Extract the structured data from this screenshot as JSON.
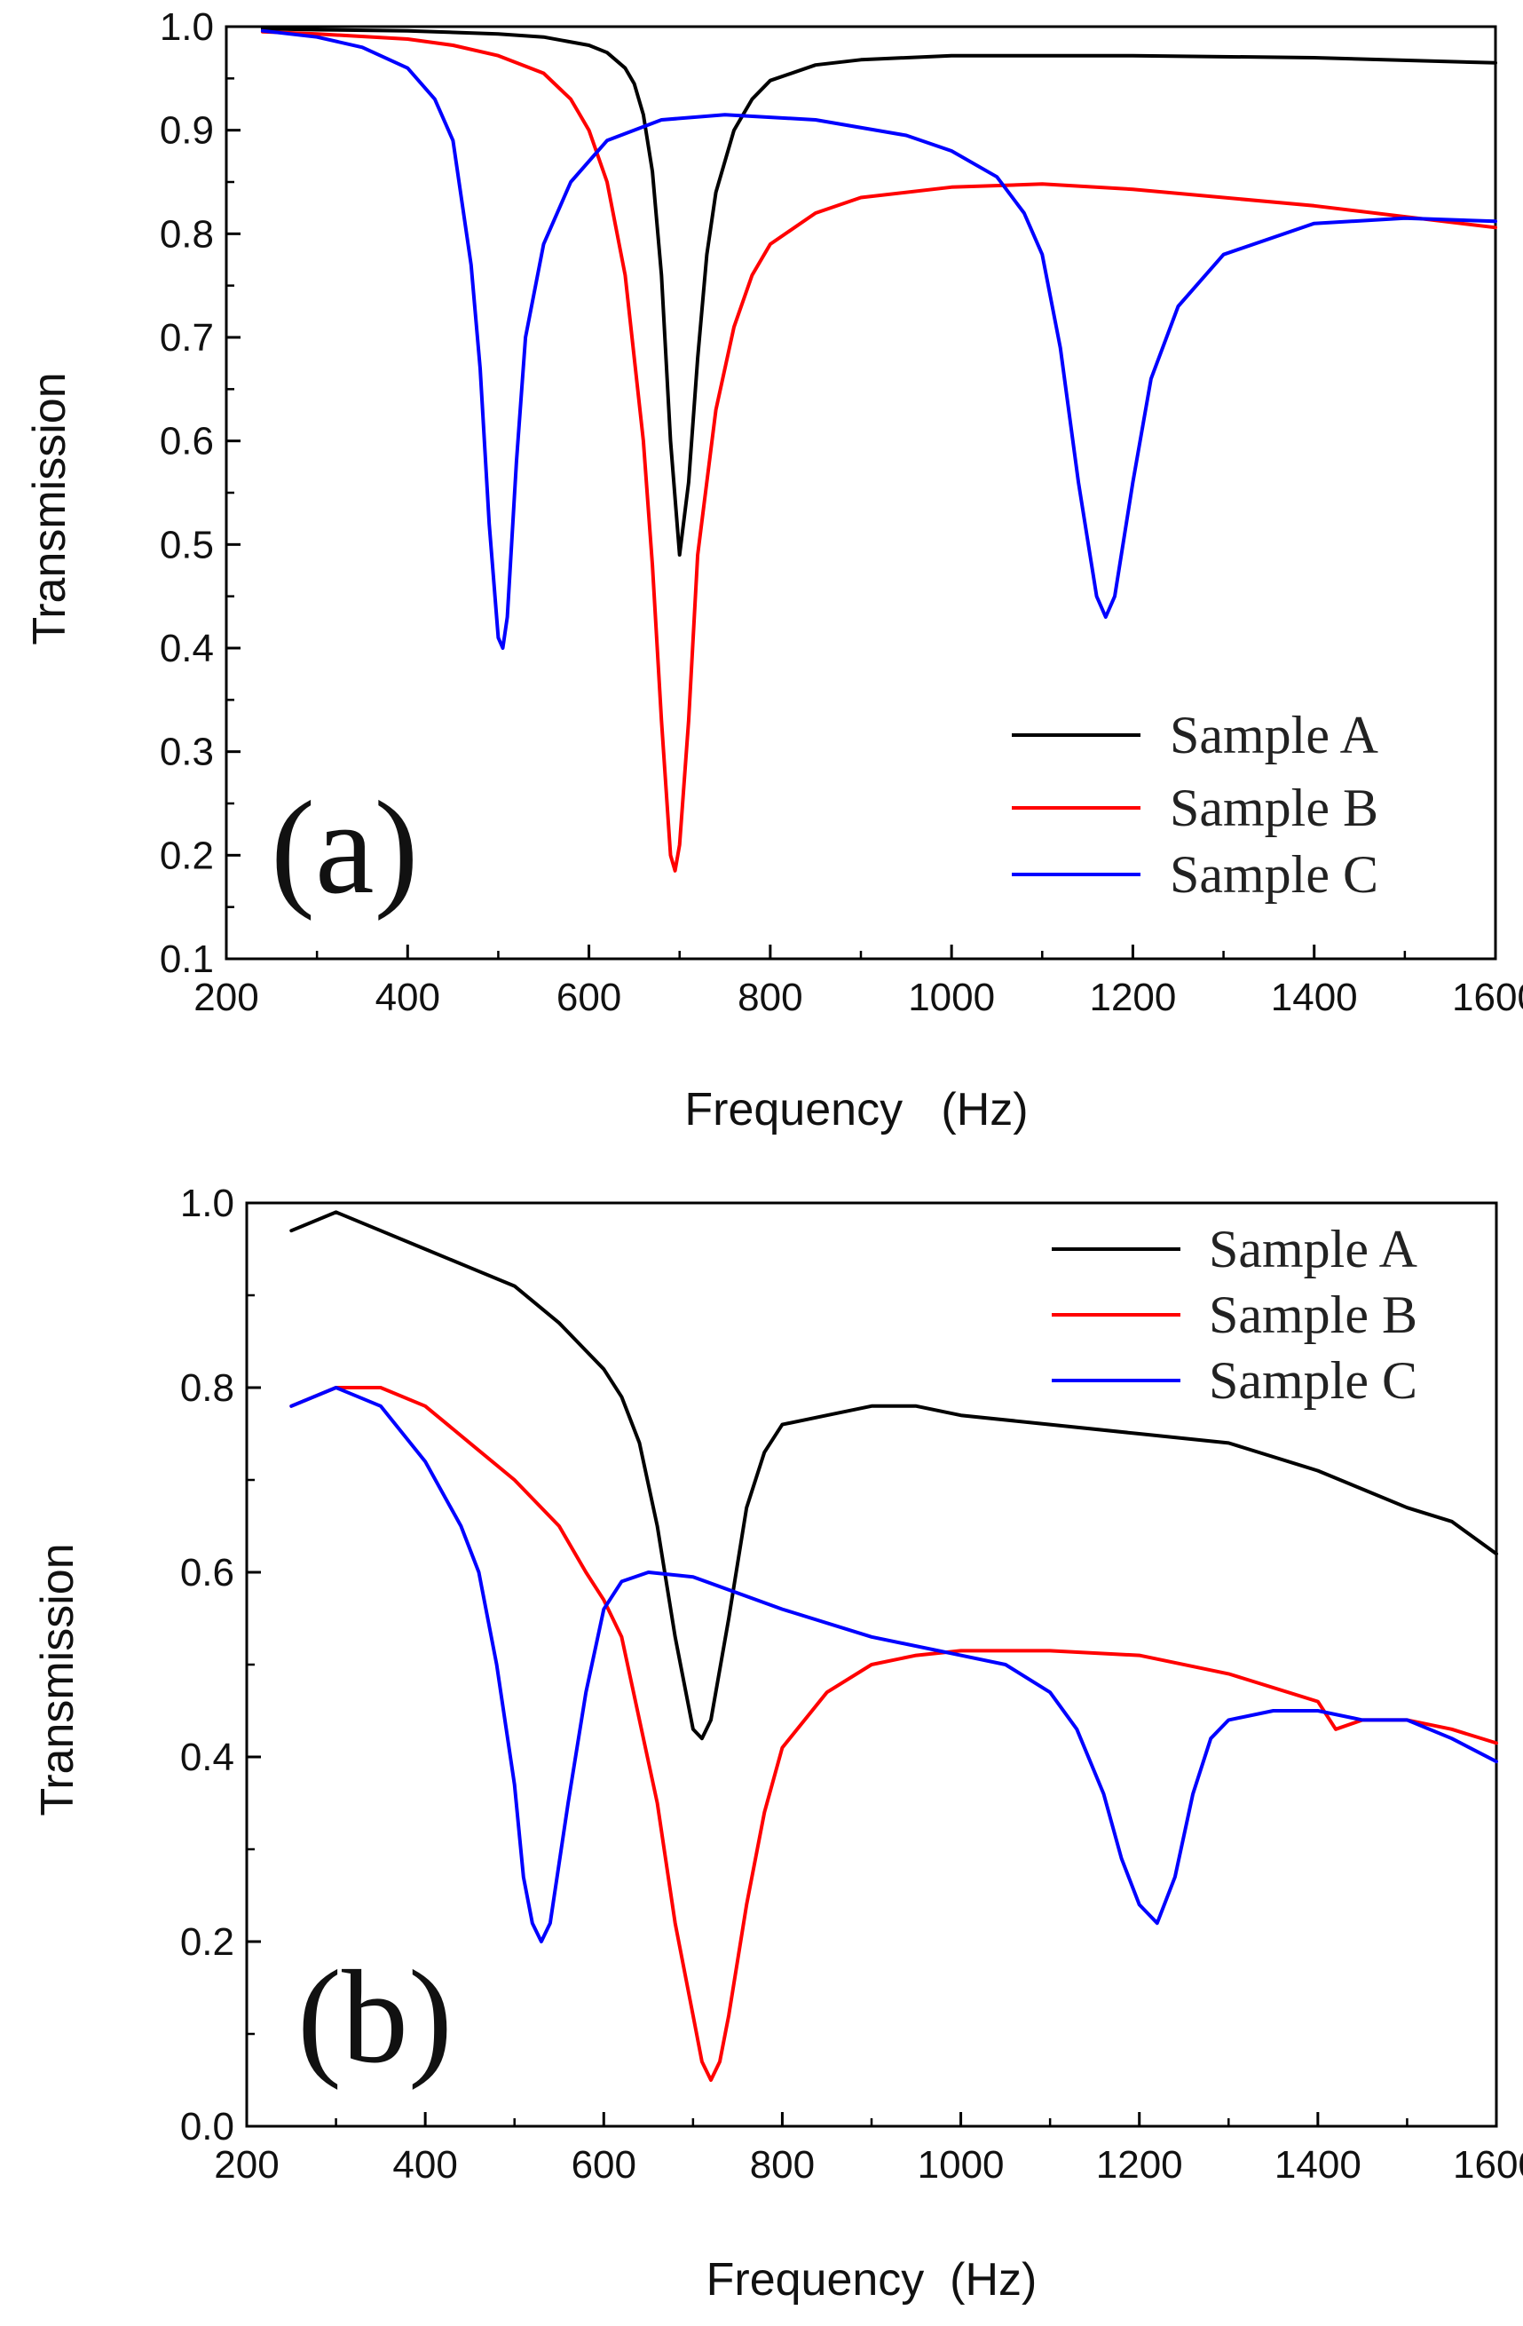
{
  "chart_data": [
    {
      "type": "line",
      "panel_label": "(a)",
      "xlabel": "Frequency   (Hz)",
      "ylabel": "Transmission",
      "xlim": [
        200,
        1600
      ],
      "ylim": [
        0.1,
        1.0
      ],
      "xticks": [
        200,
        400,
        600,
        800,
        1000,
        1200,
        1400,
        1600
      ],
      "yticks": [
        "0.1",
        "0.2",
        "0.3",
        "0.4",
        "0.5",
        "0.6",
        "0.7",
        "0.8",
        "0.9",
        "1.0"
      ],
      "legend_position": "bottom-right",
      "series": [
        {
          "name": "Sample A",
          "color": "#000000",
          "x": [
            240,
            300,
            400,
            500,
            550,
            600,
            620,
            640,
            650,
            660,
            670,
            680,
            690,
            700,
            710,
            720,
            730,
            740,
            760,
            780,
            800,
            850,
            900,
            1000,
            1200,
            1400,
            1600
          ],
          "y": [
            0.998,
            0.997,
            0.996,
            0.993,
            0.99,
            0.982,
            0.975,
            0.96,
            0.945,
            0.915,
            0.86,
            0.76,
            0.6,
            0.49,
            0.56,
            0.68,
            0.78,
            0.84,
            0.9,
            0.93,
            0.948,
            0.963,
            0.968,
            0.972,
            0.972,
            0.97,
            0.965
          ]
        },
        {
          "name": "Sample B",
          "color": "#ff0000",
          "x": [
            240,
            300,
            400,
            450,
            500,
            550,
            580,
            600,
            620,
            640,
            660,
            670,
            680,
            690,
            695,
            700,
            710,
            720,
            740,
            760,
            780,
            800,
            850,
            900,
            1000,
            1100,
            1200,
            1400,
            1600
          ],
          "y": [
            0.995,
            0.993,
            0.988,
            0.982,
            0.972,
            0.955,
            0.93,
            0.9,
            0.85,
            0.76,
            0.6,
            0.48,
            0.33,
            0.2,
            0.185,
            0.21,
            0.33,
            0.49,
            0.63,
            0.71,
            0.76,
            0.79,
            0.82,
            0.835,
            0.845,
            0.848,
            0.843,
            0.827,
            0.806
          ]
        },
        {
          "name": "Sample C",
          "color": "#0000ff",
          "x": [
            240,
            300,
            350,
            400,
            430,
            450,
            470,
            480,
            490,
            500,
            505,
            510,
            520,
            530,
            550,
            580,
            620,
            680,
            750,
            850,
            950,
            1000,
            1050,
            1080,
            1100,
            1120,
            1140,
            1160,
            1170,
            1180,
            1200,
            1220,
            1250,
            1300,
            1400,
            1500,
            1600
          ],
          "y": [
            0.996,
            0.99,
            0.98,
            0.96,
            0.93,
            0.89,
            0.77,
            0.67,
            0.52,
            0.41,
            0.4,
            0.43,
            0.58,
            0.7,
            0.79,
            0.85,
            0.89,
            0.91,
            0.915,
            0.91,
            0.895,
            0.88,
            0.855,
            0.82,
            0.78,
            0.69,
            0.56,
            0.45,
            0.43,
            0.45,
            0.56,
            0.66,
            0.73,
            0.78,
            0.81,
            0.815,
            0.812
          ]
        }
      ]
    },
    {
      "type": "line",
      "panel_label": "(b)",
      "xlabel": "Frequency  (Hz)",
      "ylabel": "Transmission",
      "xlim": [
        200,
        1600
      ],
      "ylim": [
        0.0,
        1.0
      ],
      "xticks": [
        200,
        400,
        600,
        800,
        1000,
        1200,
        1400,
        1600
      ],
      "yticks": [
        "0.0",
        "0.2",
        "0.4",
        "0.6",
        "0.8",
        "1.0"
      ],
      "legend_position": "top-right",
      "series": [
        {
          "name": "Sample A",
          "color": "#000000",
          "x": [
            250,
            300,
            350,
            400,
            450,
            500,
            550,
            600,
            620,
            640,
            660,
            680,
            700,
            710,
            720,
            740,
            760,
            780,
            800,
            850,
            900,
            950,
            1000,
            1100,
            1200,
            1300,
            1400,
            1450,
            1500,
            1550,
            1600
          ],
          "y": [
            0.97,
            0.99,
            0.97,
            0.95,
            0.93,
            0.91,
            0.87,
            0.82,
            0.79,
            0.74,
            0.65,
            0.53,
            0.43,
            0.42,
            0.44,
            0.55,
            0.67,
            0.73,
            0.76,
            0.77,
            0.78,
            0.78,
            0.77,
            0.76,
            0.75,
            0.74,
            0.71,
            0.69,
            0.67,
            0.655,
            0.62
          ]
        },
        {
          "name": "Sample B",
          "color": "#ff0000",
          "x": [
            250,
            300,
            350,
            400,
            450,
            500,
            550,
            580,
            600,
            620,
            640,
            660,
            680,
            700,
            710,
            720,
            730,
            740,
            760,
            780,
            800,
            850,
            900,
            950,
            1000,
            1100,
            1200,
            1300,
            1400,
            1420,
            1450,
            1500,
            1550,
            1600
          ],
          "y": [
            0.78,
            0.8,
            0.8,
            0.78,
            0.74,
            0.7,
            0.65,
            0.6,
            0.57,
            0.53,
            0.44,
            0.35,
            0.22,
            0.12,
            0.07,
            0.05,
            0.07,
            0.12,
            0.24,
            0.34,
            0.41,
            0.47,
            0.5,
            0.51,
            0.515,
            0.515,
            0.51,
            0.49,
            0.46,
            0.43,
            0.44,
            0.44,
            0.43,
            0.415
          ]
        },
        {
          "name": "Sample C",
          "color": "#0000ff",
          "x": [
            250,
            300,
            350,
            400,
            440,
            460,
            480,
            500,
            510,
            520,
            530,
            540,
            560,
            580,
            600,
            620,
            650,
            700,
            800,
            900,
            1000,
            1050,
            1100,
            1130,
            1160,
            1180,
            1200,
            1220,
            1240,
            1260,
            1280,
            1300,
            1350,
            1400,
            1450,
            1500,
            1550,
            1600
          ],
          "y": [
            0.78,
            0.8,
            0.78,
            0.72,
            0.65,
            0.6,
            0.5,
            0.37,
            0.27,
            0.22,
            0.2,
            0.22,
            0.35,
            0.47,
            0.56,
            0.59,
            0.6,
            0.595,
            0.56,
            0.53,
            0.51,
            0.5,
            0.47,
            0.43,
            0.36,
            0.29,
            0.24,
            0.22,
            0.27,
            0.36,
            0.42,
            0.44,
            0.45,
            0.45,
            0.44,
            0.44,
            0.42,
            0.395
          ]
        }
      ]
    }
  ]
}
